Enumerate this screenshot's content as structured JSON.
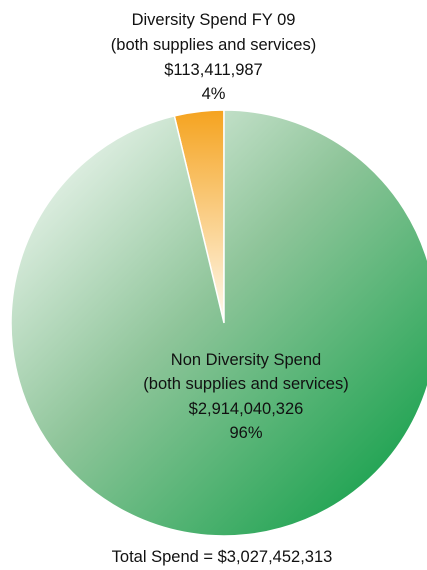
{
  "chart_data": {
    "type": "pie",
    "title": "",
    "slices": [
      {
        "label_lines": [
          "Diversity Spend FY 09",
          "(both supplies and services)"
        ],
        "amount": "$113,411,987",
        "percent": "4%",
        "value": 113411987,
        "color": "#f5a31f"
      },
      {
        "label_lines": [
          "Non Diversity Spend",
          "(both supplies and services)"
        ],
        "amount": "$2,914,040,326",
        "percent": "96%",
        "value": 2914040326,
        "color": "#009a3e"
      }
    ],
    "footer": "Total Spend = $3,027,452,313",
    "total": 3027452313
  }
}
